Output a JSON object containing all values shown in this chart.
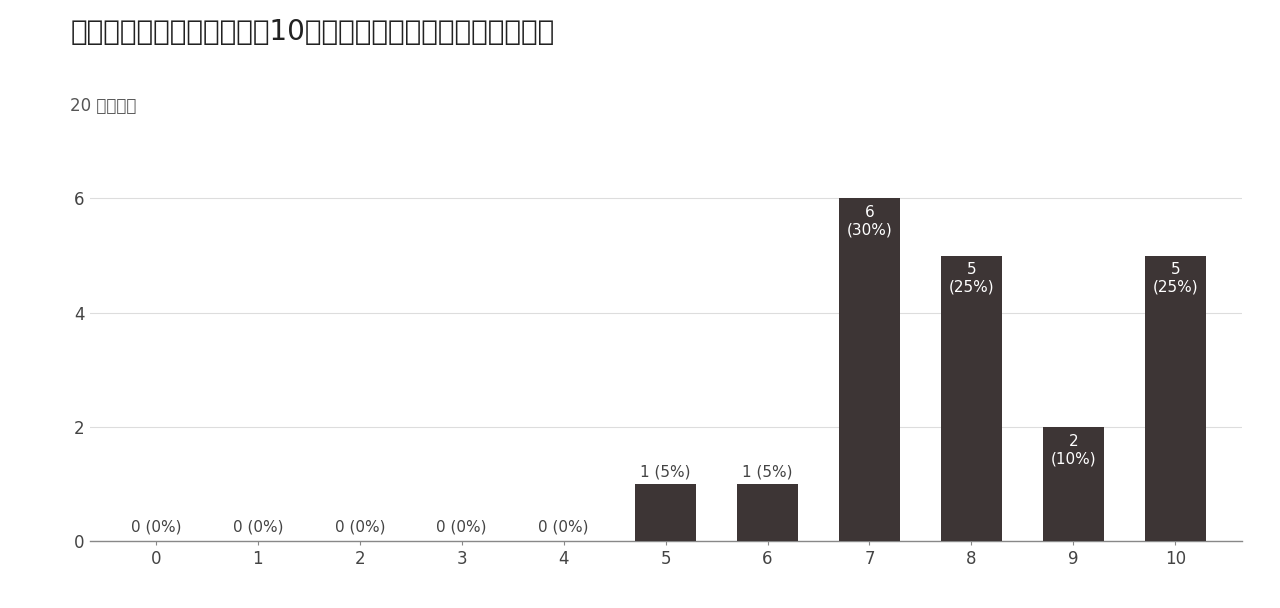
{
  "title": "大学生活全体を振り返って10点満点で自己評価してください。",
  "subtitle": "20 件の回答",
  "categories": [
    0,
    1,
    2,
    3,
    4,
    5,
    6,
    7,
    8,
    9,
    10
  ],
  "values": [
    0,
    0,
    0,
    0,
    0,
    1,
    1,
    6,
    5,
    2,
    5
  ],
  "percentages": [
    "0%",
    "0%",
    "0%",
    "0%",
    "0%",
    "5%",
    "5%",
    "30%",
    "25%",
    "10%",
    "25%"
  ],
  "bar_color": "#3d3535",
  "background_color": "#ffffff",
  "ylim": [
    0,
    6.6
  ],
  "yticks": [
    0,
    2,
    4,
    6
  ],
  "title_fontsize": 20,
  "subtitle_fontsize": 12,
  "label_fontsize": 11,
  "tick_fontsize": 12,
  "text_color_dark": "#444444",
  "text_color_white": "#ffffff",
  "grid_color": "#dddddd"
}
